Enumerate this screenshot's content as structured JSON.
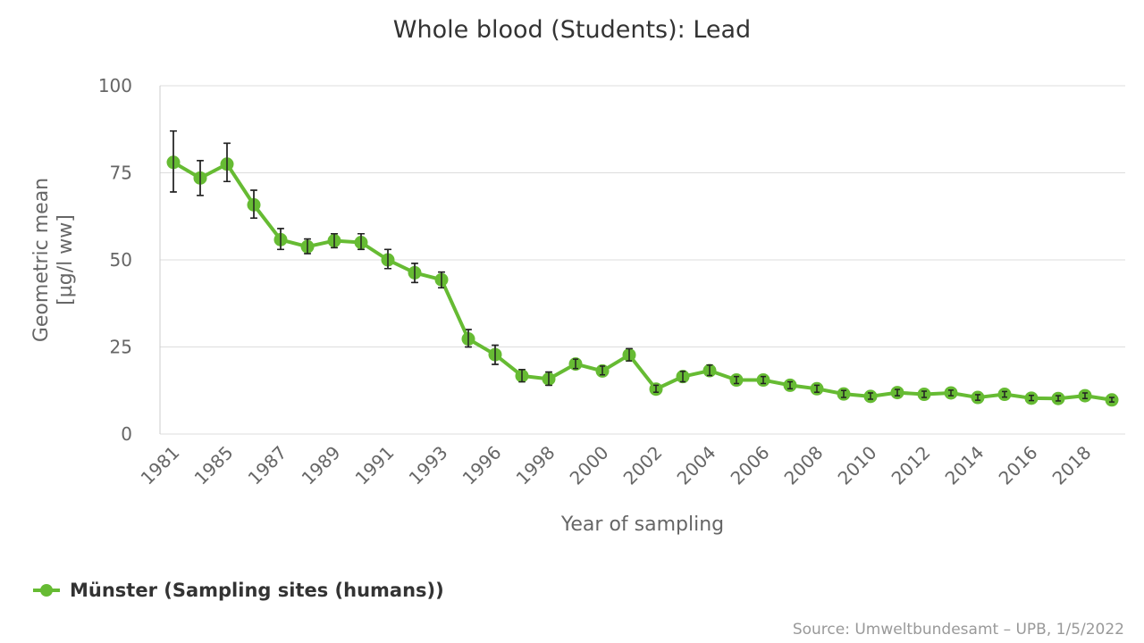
{
  "chart_data": {
    "type": "line",
    "title": "Whole blood (Students): Lead",
    "xlabel": "Year of sampling",
    "ylabel_line1": "Geometric mean",
    "ylabel_line2": "[µg/l ww]",
    "ylim": [
      0,
      100
    ],
    "y_ticks": [
      "0",
      "25",
      "50",
      "75",
      "100"
    ],
    "grid": true,
    "legend_position": "bottom-left",
    "color": "#66bb33",
    "error_bar_color": "#222222",
    "x_tick_labels": [
      "1981",
      "1985",
      "1987",
      "1989",
      "1991",
      "1993",
      "1996",
      "1998",
      "2000",
      "2002",
      "2004",
      "2006",
      "2008",
      "2010",
      "2012",
      "2014",
      "2016",
      "2018"
    ],
    "series": [
      {
        "name": "Münster (Sampling sites (humans))",
        "values": [
          78.0,
          73.5,
          77.5,
          65.8,
          55.8,
          53.8,
          55.5,
          55.0,
          50.0,
          46.3,
          44.3,
          27.3,
          22.8,
          16.7,
          15.8,
          20.1,
          18.1,
          22.7,
          12.9,
          16.5,
          18.2,
          15.5,
          15.5,
          14.0,
          13.0,
          11.5,
          10.8,
          11.9,
          11.4,
          11.8,
          10.5,
          11.4,
          10.3,
          10.2,
          11.0,
          9.8
        ],
        "error_low": [
          69.5,
          68.5,
          72.5,
          62.0,
          53.0,
          51.8,
          53.5,
          53.0,
          47.5,
          43.5,
          42.0,
          25.0,
          20.0,
          15.0,
          14.0,
          18.8,
          17.0,
          21.0,
          12.0,
          15.0,
          16.8,
          14.5,
          14.5,
          13.0,
          12.0,
          10.5,
          10.0,
          11.0,
          10.5,
          11.0,
          9.7,
          10.6,
          9.6,
          9.5,
          10.2,
          9.2
        ],
        "error_high": [
          87.0,
          78.5,
          83.5,
          70.0,
          59.0,
          56.0,
          57.5,
          57.5,
          53.0,
          49.0,
          46.5,
          30.0,
          25.5,
          18.5,
          17.8,
          21.5,
          19.5,
          24.5,
          14.0,
          18.0,
          19.8,
          16.5,
          16.5,
          15.0,
          14.0,
          12.5,
          11.8,
          12.8,
          12.3,
          12.6,
          11.3,
          12.2,
          11.1,
          11.0,
          11.8,
          10.5
        ]
      }
    ]
  },
  "credits": "Source: Umweltbundesamt – UPB, 1/5/2022"
}
